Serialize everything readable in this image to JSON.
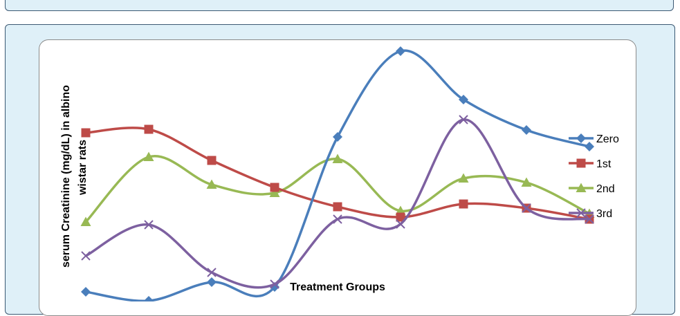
{
  "chart_data": {
    "type": "line",
    "title": "",
    "xlabel": "Treatment Groups",
    "ylabel": [
      "serum Creatinine (mg/dL) in albino",
      "wistar rats"
    ],
    "categories": [
      "",
      "",
      "",
      "",
      "",
      "",
      "",
      "",
      ""
    ],
    "ylim": [
      0,
      100
    ],
    "grid": false,
    "legend_position": "right",
    "series": [
      {
        "name": "Zero",
        "color": "#4a7ebb",
        "marker": "diamond",
        "values": [
          27.6,
          25.0,
          30.4,
          29.0,
          72.4,
          97.2,
          83.2,
          74.4,
          69.6
        ]
      },
      {
        "name": "1st",
        "color": "#be4b48",
        "marker": "square",
        "values": [
          73.6,
          74.6,
          65.6,
          57.8,
          52.2,
          49.2,
          53.0,
          51.8,
          48.6
        ]
      },
      {
        "name": "2nd",
        "color": "#98b954",
        "marker": "triangle",
        "values": [
          47.8,
          66.6,
          58.6,
          56.2,
          66.0,
          51.0,
          60.4,
          59.2,
          50.2
        ]
      },
      {
        "name": "3rd",
        "color": "#7d60a0",
        "marker": "x",
        "values": [
          38.0,
          47.0,
          33.2,
          29.8,
          48.6,
          47.2,
          77.4,
          51.8,
          48.6
        ]
      }
    ]
  }
}
